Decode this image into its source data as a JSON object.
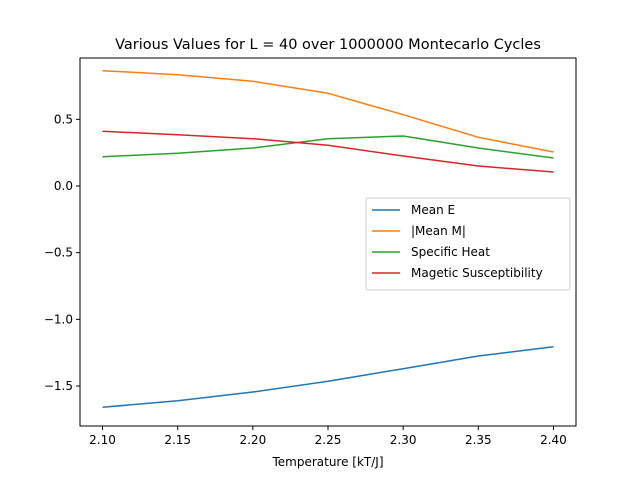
{
  "chart_data": {
    "type": "line",
    "title": "Various Values for L = 40 over 1000000 Montecarlo Cycles",
    "xlabel": "Temperature [kT/J]",
    "ylabel": "",
    "xlim": [
      2.085,
      2.415
    ],
    "ylim": [
      -1.8,
      0.96
    ],
    "x_ticks": [
      "2.10",
      "2.15",
      "2.20",
      "2.25",
      "2.30",
      "2.35",
      "2.40"
    ],
    "x_tick_values": [
      2.1,
      2.15,
      2.2,
      2.25,
      2.3,
      2.35,
      2.4
    ],
    "y_ticks": [
      "−1.5",
      "−1.0",
      "−0.5",
      "0.0",
      "0.5"
    ],
    "y_tick_values": [
      -1.5,
      -1.0,
      -0.5,
      0.0,
      0.5
    ],
    "grid": false,
    "legend_position": "center-right",
    "x": [
      2.1,
      2.15,
      2.2,
      2.25,
      2.3,
      2.35,
      2.4
    ],
    "series": [
      {
        "name": "Mean E",
        "color": "#1f77b4",
        "values": [
          -1.66,
          -1.61,
          -1.545,
          -1.465,
          -1.37,
          -1.275,
          -1.205
        ]
      },
      {
        "name": "|Mean M|",
        "color": "#ff7f0e",
        "values": [
          0.865,
          0.835,
          0.785,
          0.695,
          0.535,
          0.365,
          0.255
        ]
      },
      {
        "name": "Specific Heat",
        "color": "#2ca02c",
        "values": [
          0.22,
          0.245,
          0.285,
          0.355,
          0.375,
          0.285,
          0.21
        ]
      },
      {
        "name": "Magetic Susceptibility",
        "color": "#d62728",
        "values": [
          0.41,
          0.385,
          0.355,
          0.305,
          0.225,
          0.15,
          0.105
        ]
      }
    ]
  }
}
